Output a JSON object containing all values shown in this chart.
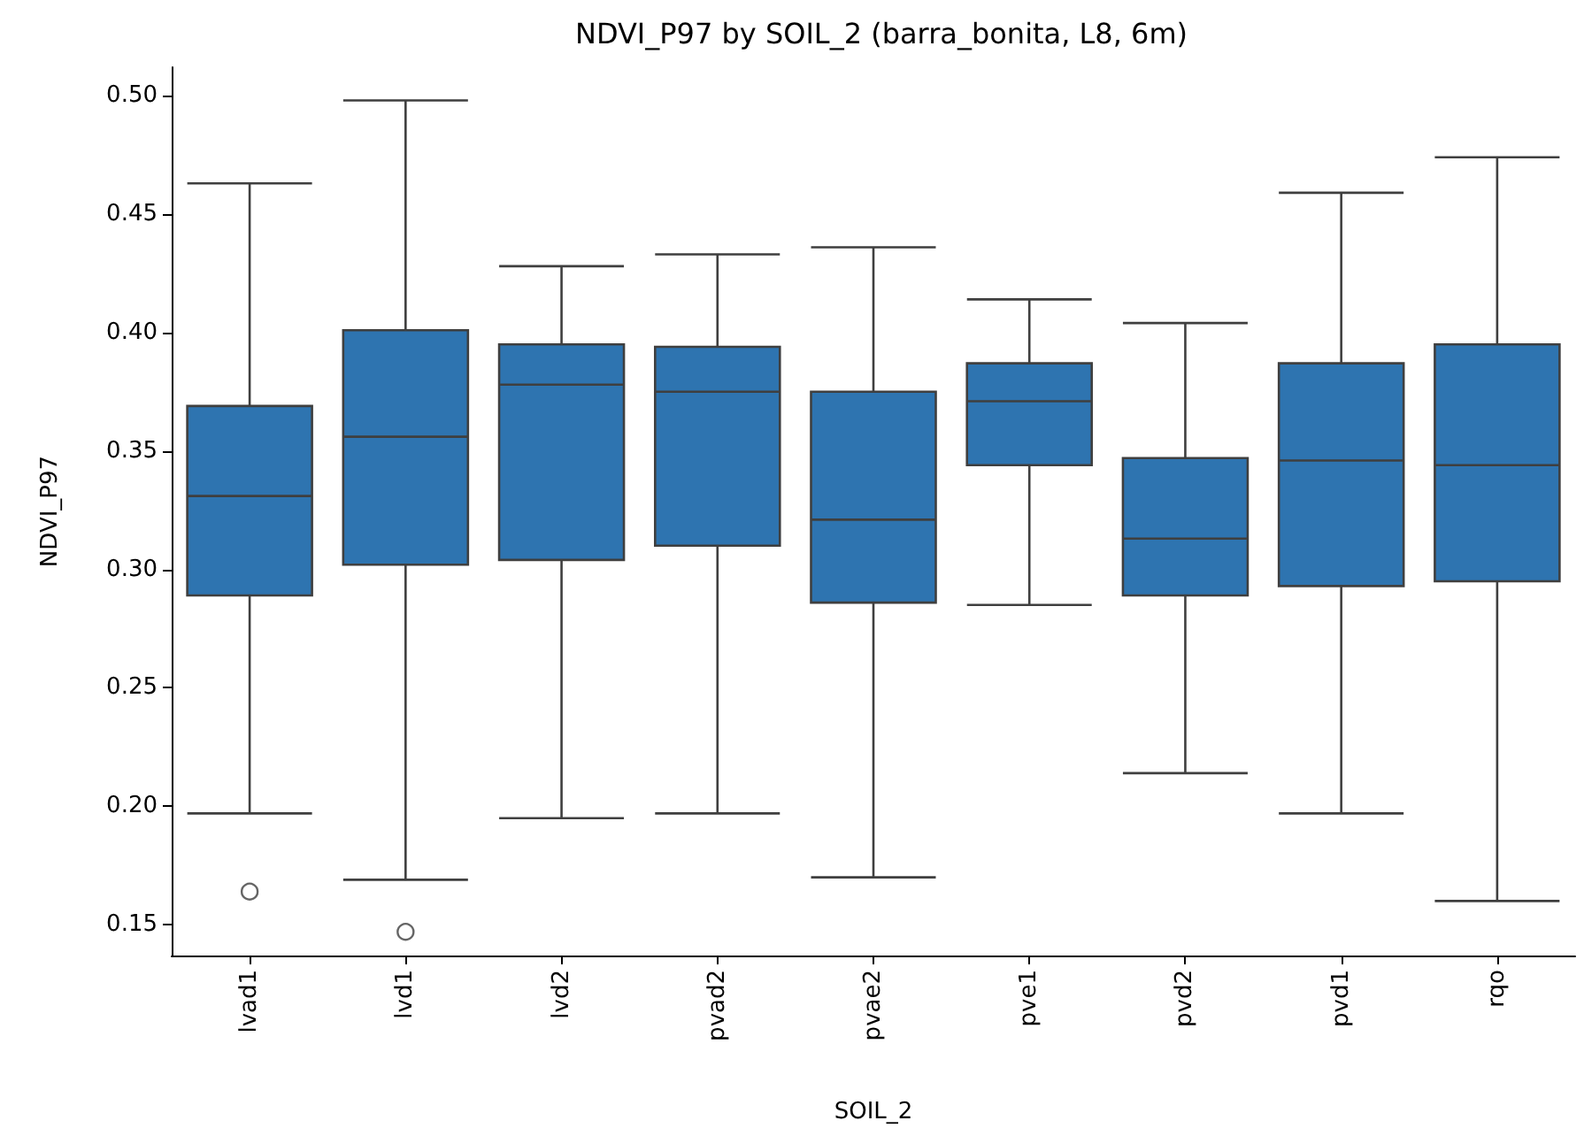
{
  "chart_data": {
    "type": "box",
    "title": "NDVI_P97 by SOIL_2 (barra_bonita, L8, 6m)",
    "xlabel": "SOIL_2",
    "ylabel": "NDVI_P97",
    "categories": [
      "lvad1",
      "lvd1",
      "lvd2",
      "pvad2",
      "pvae2",
      "pve1",
      "pvd2",
      "pvd1",
      "rqo"
    ],
    "color": "#2e74b0",
    "grid": false,
    "ylim": [
      0.137,
      0.512
    ],
    "yticks": [
      0.15,
      {
        "value": 0.2,
        "label": "0.20"
      },
      0.25,
      {
        "value": 0.3,
        "label": "0.30"
      },
      0.35,
      {
        "value": 0.4,
        "label": "0.40"
      },
      0.45,
      {
        "value": 0.5,
        "label": "0.50"
      }
    ],
    "boxes": [
      {
        "low": 0.197,
        "q1": 0.289,
        "median": 0.331,
        "q3": 0.369,
        "high": 0.463,
        "outliers": [
          0.164
        ]
      },
      {
        "low": 0.169,
        "q1": 0.302,
        "median": 0.356,
        "q3": 0.401,
        "high": 0.498,
        "outliers": [
          0.147
        ]
      },
      {
        "low": 0.195,
        "q1": 0.304,
        "median": 0.378,
        "q3": 0.395,
        "high": 0.428
      },
      {
        "low": 0.197,
        "q1": 0.31,
        "median": 0.375,
        "q3": 0.394,
        "high": 0.433
      },
      {
        "low": 0.17,
        "q1": 0.286,
        "median": 0.321,
        "q3": 0.375,
        "high": 0.436
      },
      {
        "low": 0.285,
        "q1": 0.344,
        "median": 0.371,
        "q3": 0.387,
        "high": 0.414
      },
      {
        "low": 0.214,
        "q1": 0.289,
        "median": 0.313,
        "q3": 0.347,
        "high": 0.404
      },
      {
        "low": 0.197,
        "q1": 0.293,
        "median": 0.346,
        "q3": 0.387,
        "high": 0.459
      },
      {
        "low": 0.16,
        "q1": 0.295,
        "median": 0.344,
        "q3": 0.395,
        "high": 0.474
      }
    ]
  }
}
